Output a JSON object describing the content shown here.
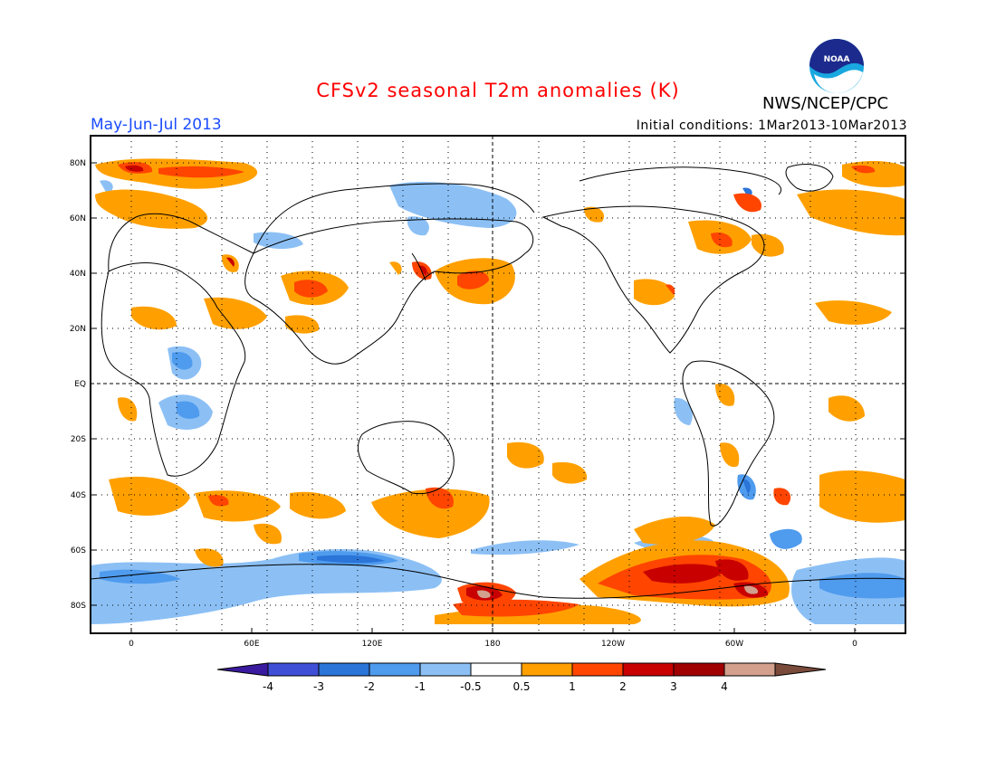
{
  "header": {
    "title": "CFSv2 seasonal T2m anomalies (K)",
    "agency": "NWS/NCEP/CPC",
    "period": "May-Jun-Jul 2013",
    "initial_conditions": "Initial conditions: 1Mar2013-10Mar2013"
  },
  "logo": {
    "text": "NOAA"
  },
  "axes": {
    "lat_labels": [
      "80N",
      "60N",
      "40N",
      "20N",
      "EQ",
      "20S",
      "40S",
      "60S",
      "80S"
    ],
    "lon_labels": [
      "0",
      "60E",
      "120E",
      "180",
      "120W",
      "60W",
      "0"
    ]
  },
  "colorbar": {
    "labels": [
      "-4",
      "-3",
      "-2",
      "-1",
      "-0.5",
      "0.5",
      "1",
      "2",
      "3",
      "4"
    ],
    "colors": [
      "#3a1a9e",
      "#3f4fd6",
      "#2b74d8",
      "#4f9bee",
      "#8cc0f5",
      "#ffffff",
      "#ffa000",
      "#ff4500",
      "#c80000",
      "#a00000",
      "#d2a08c",
      "#7a4a3a"
    ]
  },
  "colors": {
    "title": "#ff0000",
    "period": "#1a4cff"
  }
}
